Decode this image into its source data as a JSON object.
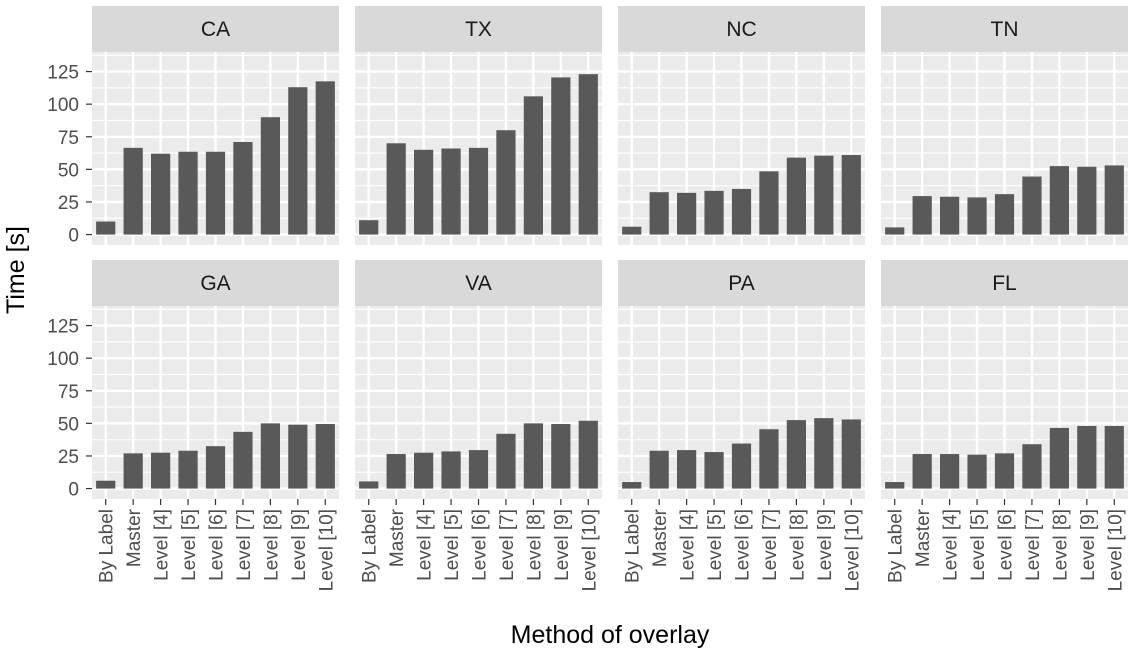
{
  "chart_data": {
    "type": "bar",
    "facet_layout": "2x4",
    "xlabel": "Method of overlay",
    "ylabel": "Time [s]",
    "ylim": [
      -8,
      140
    ],
    "yticks": [
      0,
      25,
      50,
      75,
      100,
      125
    ],
    "grid": true,
    "categories": [
      "By Label",
      "Master",
      "Level [4]",
      "Level [5]",
      "Level [6]",
      "Level [7]",
      "Level [8]",
      "Level [9]",
      "Level [10]"
    ],
    "colors": {
      "bar": "#595959",
      "panel_bg": "#ebebeb",
      "strip_bg": "#d9d9d9",
      "grid": "#ffffff"
    },
    "facets": [
      {
        "name": "CA",
        "values": [
          10,
          66.5,
          62,
          63.5,
          63.5,
          71,
          90,
          113,
          117.5
        ]
      },
      {
        "name": "TX",
        "values": [
          11,
          70,
          65,
          66,
          66.5,
          80,
          106,
          120.5,
          123
        ]
      },
      {
        "name": "NC",
        "values": [
          6,
          32.5,
          32,
          33.5,
          35,
          48.5,
          59,
          60.5,
          61
        ]
      },
      {
        "name": "TN",
        "values": [
          5.5,
          29.5,
          29,
          28.5,
          31,
          44.5,
          52.5,
          52,
          53
        ]
      },
      {
        "name": "GA",
        "values": [
          6,
          27,
          27.5,
          29,
          32.5,
          43.5,
          50,
          49,
          49.5
        ]
      },
      {
        "name": "VA",
        "values": [
          5.5,
          26.5,
          27.5,
          28.5,
          29.5,
          42,
          50,
          49.5,
          52
        ]
      },
      {
        "name": "PA",
        "values": [
          5,
          29,
          29.5,
          28,
          34.5,
          45.5,
          52.5,
          54,
          53
        ]
      },
      {
        "name": "FL",
        "values": [
          5,
          26.5,
          26.5,
          26,
          27,
          34,
          46.5,
          48,
          48
        ]
      }
    ]
  }
}
